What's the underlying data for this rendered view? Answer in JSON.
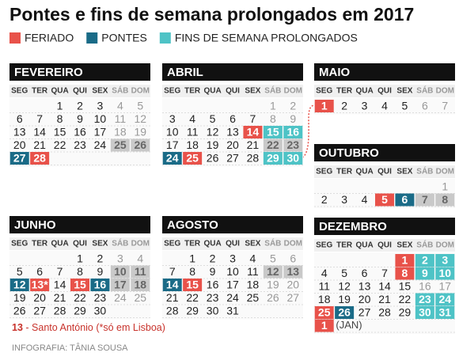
{
  "title": "Pontes e fins de semana prolongados em 2017",
  "legend": [
    {
      "label": "FERIADO",
      "color": "#e8524a"
    },
    {
      "label": "PONTES",
      "color": "#1a6b87"
    },
    {
      "label": "FINS DE SEMANA PROLONGADOS",
      "color": "#4ec3c6"
    }
  ],
  "weekdays": [
    "SEG",
    "TER",
    "QUA",
    "QUI",
    "SEX",
    "SÁB",
    "DOM"
  ],
  "months": [
    {
      "name": "FEVEREIRO",
      "rows": [
        [
          null,
          null,
          1,
          2,
          3,
          4,
          5
        ],
        [
          6,
          7,
          8,
          9,
          10,
          11,
          12
        ],
        [
          13,
          14,
          15,
          16,
          17,
          18,
          19
        ],
        [
          20,
          21,
          22,
          23,
          24,
          {
            "day": 25,
            "color": "#c9c9c9"
          },
          {
            "day": 26,
            "color": "#c9c9c9"
          }
        ],
        [
          {
            "day": 27,
            "color": "#1a6b87"
          },
          {
            "day": 28,
            "color": "#e8524a"
          }
        ]
      ]
    },
    {
      "name": "ABRIL",
      "rows": [
        [
          null,
          null,
          null,
          null,
          null,
          1,
          2
        ],
        [
          3,
          4,
          5,
          6,
          7,
          8,
          9
        ],
        [
          10,
          11,
          12,
          13,
          {
            "day": 14,
            "color": "#e8524a"
          },
          {
            "day": 15,
            "color": "#4ec3c6"
          },
          {
            "day": 16,
            "color": "#4ec3c6"
          }
        ],
        [
          17,
          18,
          19,
          20,
          21,
          {
            "day": 22,
            "color": "#c9c9c9"
          },
          {
            "day": 23,
            "color": "#c9c9c9"
          }
        ],
        [
          {
            "day": 24,
            "color": "#1a6b87"
          },
          {
            "day": 25,
            "color": "#e8524a"
          },
          26,
          27,
          28,
          {
            "day": 29,
            "color": "#4ec3c6"
          },
          {
            "day": 30,
            "color": "#4ec3c6"
          }
        ]
      ]
    },
    {
      "name": "MAIO",
      "rows": [
        [
          {
            "day": 1,
            "color": "#e8524a"
          },
          2,
          3,
          4,
          5,
          6,
          7
        ]
      ]
    },
    {
      "name": "OUTUBRO",
      "rows": [
        [
          null,
          null,
          null,
          null,
          null,
          null,
          1
        ],
        [
          2,
          3,
          4,
          {
            "day": 5,
            "color": "#e8524a"
          },
          {
            "day": 6,
            "color": "#1a6b87"
          },
          {
            "day": 7,
            "color": "#c9c9c9"
          },
          {
            "day": 8,
            "color": "#c9c9c9"
          }
        ]
      ]
    },
    {
      "name": "JUNHO",
      "rows": [
        [
          null,
          null,
          null,
          1,
          2,
          3,
          4
        ],
        [
          5,
          6,
          7,
          8,
          9,
          {
            "day": 10,
            "color": "#c9c9c9"
          },
          {
            "day": 11,
            "color": "#c9c9c9"
          }
        ],
        [
          {
            "day": 12,
            "color": "#1a6b87"
          },
          {
            "day": "13*",
            "color": "#e8524a"
          },
          14,
          {
            "day": 15,
            "color": "#e8524a"
          },
          {
            "day": 16,
            "color": "#1a6b87"
          },
          {
            "day": 17,
            "color": "#c9c9c9"
          },
          {
            "day": 18,
            "color": "#c9c9c9"
          }
        ],
        [
          19,
          20,
          21,
          22,
          23,
          24,
          25
        ],
        [
          26,
          27,
          28,
          29,
          30
        ]
      ]
    },
    {
      "name": "AGOSTO",
      "rows": [
        [
          null,
          1,
          2,
          3,
          4,
          5,
          6
        ],
        [
          7,
          8,
          9,
          10,
          11,
          {
            "day": 12,
            "color": "#c9c9c9"
          },
          {
            "day": 13,
            "color": "#c9c9c9"
          }
        ],
        [
          {
            "day": 14,
            "color": "#1a6b87"
          },
          {
            "day": 15,
            "color": "#e8524a"
          },
          16,
          17,
          18,
          19,
          20
        ],
        [
          21,
          22,
          23,
          24,
          25,
          26,
          27
        ],
        [
          28,
          29,
          30,
          31
        ]
      ]
    },
    {
      "name": "DEZEMBRO",
      "rows": [
        [
          null,
          null,
          null,
          null,
          {
            "day": 1,
            "color": "#e8524a"
          },
          {
            "day": 2,
            "color": "#4ec3c6"
          },
          {
            "day": 3,
            "color": "#4ec3c6"
          }
        ],
        [
          4,
          5,
          6,
          7,
          {
            "day": 8,
            "color": "#e8524a"
          },
          {
            "day": 9,
            "color": "#4ec3c6"
          },
          {
            "day": 10,
            "color": "#4ec3c6"
          }
        ],
        [
          11,
          12,
          13,
          14,
          15,
          16,
          17
        ],
        [
          18,
          19,
          20,
          21,
          22,
          {
            "day": 23,
            "color": "#4ec3c6"
          },
          {
            "day": 24,
            "color": "#4ec3c6"
          }
        ],
        [
          {
            "day": 25,
            "color": "#e8524a"
          },
          {
            "day": 26,
            "color": "#1a6b87"
          },
          27,
          28,
          29,
          {
            "day": 30,
            "color": "#4ec3c6"
          },
          {
            "day": 31,
            "color": "#4ec3c6"
          }
        ],
        [
          {
            "day": 1,
            "color": "#e8524a"
          },
          "(JAN)"
        ]
      ]
    }
  ],
  "footnote": {
    "day": "13",
    "text": "- Santo António (*só em Lisboa)"
  },
  "credit": "INFOGRAFIA: TÂNIA SOUSA"
}
